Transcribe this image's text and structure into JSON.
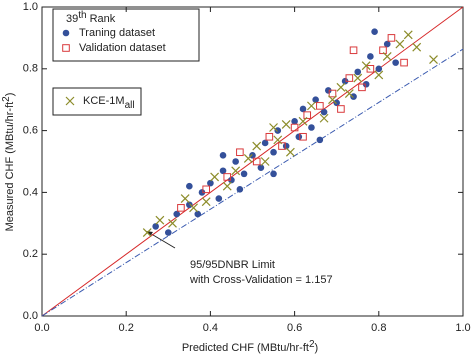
{
  "chart_data": {
    "type": "scatter",
    "x_label": {
      "text": "Predicted CHF (MBtu/hr-ft",
      "sup": "2",
      "end": ")"
    },
    "y_label": {
      "text": "Measured CHF (MBtu/hr-ft",
      "sup": "2",
      "end": ")"
    },
    "legend_title": {
      "rank": "39",
      "suffix": "th",
      "word": "Rank"
    },
    "xlim": [
      0,
      1
    ],
    "ylim": [
      0,
      1
    ],
    "xticks": [
      {
        "value": 0,
        "label": "0.0"
      },
      0.2,
      0.4,
      0.6,
      0.8,
      {
        "value": 1,
        "label": "1.0"
      }
    ],
    "yticks": [
      {
        "value": 0,
        "label": "0.0"
      },
      0.2,
      0.4,
      0.6,
      0.8,
      {
        "value": 1,
        "label": "1.0"
      }
    ],
    "series": [
      {
        "name": "Traning dataset",
        "marker": "circle",
        "color": "#34509a",
        "x": [
          0.27,
          0.3,
          0.32,
          0.35,
          0.37,
          0.38,
          0.4,
          0.42,
          0.43,
          0.45,
          0.46,
          0.48,
          0.5,
          0.52,
          0.53,
          0.55,
          0.56,
          0.58,
          0.6,
          0.61,
          0.62,
          0.64,
          0.65,
          0.67,
          0.68,
          0.7,
          0.72,
          0.74,
          0.75,
          0.77,
          0.78,
          0.8,
          0.82,
          0.84,
          0.79,
          0.47,
          0.55,
          0.66,
          0.43,
          0.35
        ],
        "y": [
          0.29,
          0.27,
          0.33,
          0.36,
          0.33,
          0.4,
          0.43,
          0.38,
          0.47,
          0.44,
          0.5,
          0.46,
          0.52,
          0.48,
          0.56,
          0.53,
          0.6,
          0.55,
          0.63,
          0.58,
          0.67,
          0.61,
          0.7,
          0.66,
          0.73,
          0.69,
          0.76,
          0.71,
          0.79,
          0.75,
          0.84,
          0.8,
          0.88,
          0.82,
          0.92,
          0.41,
          0.46,
          0.57,
          0.52,
          0.42
        ]
      },
      {
        "name": "Validation dataset",
        "marker": "square",
        "color": "#d9393b",
        "x": [
          0.33,
          0.39,
          0.44,
          0.47,
          0.51,
          0.54,
          0.57,
          0.6,
          0.63,
          0.66,
          0.69,
          0.71,
          0.73,
          0.76,
          0.78,
          0.81,
          0.83,
          0.86,
          0.74,
          0.62
        ],
        "y": [
          0.35,
          0.41,
          0.45,
          0.53,
          0.5,
          0.58,
          0.55,
          0.61,
          0.65,
          0.68,
          0.72,
          0.67,
          0.77,
          0.74,
          0.8,
          0.86,
          0.9,
          0.82,
          0.86,
          0.58
        ]
      },
      {
        "name": "KCE-1M",
        "name_sub": "all",
        "marker": "x",
        "color": "#8c8c2a",
        "x": [
          0.25,
          0.28,
          0.31,
          0.34,
          0.36,
          0.39,
          0.41,
          0.44,
          0.46,
          0.49,
          0.51,
          0.53,
          0.56,
          0.58,
          0.59,
          0.62,
          0.64,
          0.67,
          0.69,
          0.71,
          0.73,
          0.75,
          0.77,
          0.8,
          0.82,
          0.85,
          0.87,
          0.89,
          0.93,
          0.55
        ],
        "y": [
          0.27,
          0.31,
          0.3,
          0.38,
          0.35,
          0.37,
          0.45,
          0.42,
          0.47,
          0.51,
          0.55,
          0.5,
          0.57,
          0.62,
          0.53,
          0.63,
          0.68,
          0.64,
          0.7,
          0.74,
          0.72,
          0.77,
          0.81,
          0.78,
          0.84,
          0.88,
          0.91,
          0.87,
          0.83,
          0.61
        ]
      }
    ],
    "reference_lines": [
      {
        "slope": 1,
        "color": "#d62728",
        "style": "solid"
      },
      {
        "slope": 0.864,
        "color": "#3b5bb0",
        "style": "dashdot"
      }
    ],
    "annotation": [
      "95/95DNBR Limit",
      "with Cross-Validation = 1.157"
    ]
  }
}
